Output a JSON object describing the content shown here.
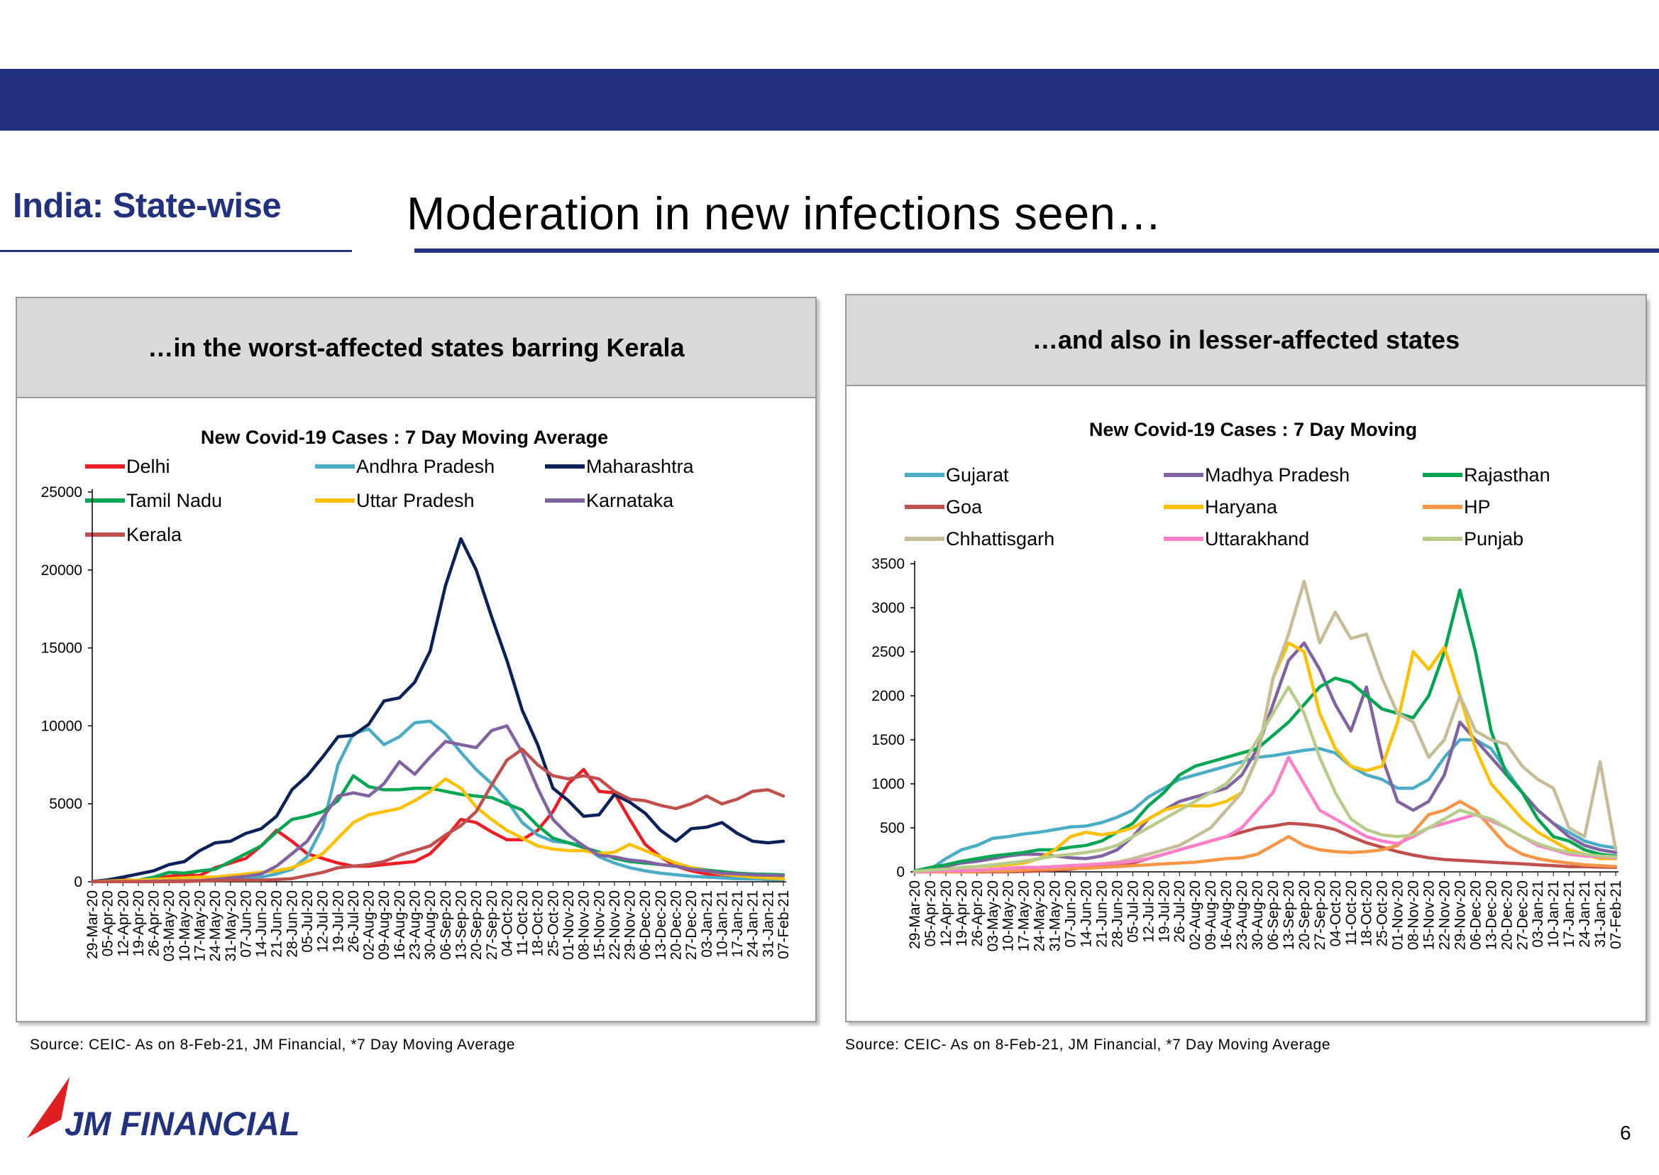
{
  "header": {
    "section_label": "India: State-wise",
    "title": "Moderation in new infections seen…"
  },
  "left_panel": {
    "heading": "…in the worst-affected states barring Kerala",
    "source": "Source: CEIC- As on 8-Feb-21,  JM Financial, *7 Day Moving Average"
  },
  "right_panel": {
    "heading": "…and also in lesser-affected states",
    "source": "Source: CEIC- As on 8-Feb-21,  JM Financial, *7 Day Moving Average"
  },
  "footer": {
    "logo": "JM FINANCIAL",
    "page_number": "6",
    "brand_color": "#22327e",
    "logo_accent": "#e02020"
  },
  "chart_data": [
    {
      "type": "line",
      "title": "New Covid-19 Cases : 7 Day Moving Average",
      "ylim": [
        0,
        25000
      ],
      "yticks": [
        0,
        5000,
        10000,
        15000,
        20000,
        25000
      ],
      "x": [
        "29-Mar-20",
        "05-Apr-20",
        "12-Apr-20",
        "19-Apr-20",
        "26-Apr-20",
        "03-May-20",
        "10-May-20",
        "17-May-20",
        "24-May-20",
        "31-May-20",
        "07-Jun-20",
        "14-Jun-20",
        "21-Jun-20",
        "28-Jun-20",
        "05-Jul-20",
        "12-Jul-20",
        "19-Jul-20",
        "26-Jul-20",
        "02-Aug-20",
        "09-Aug-20",
        "16-Aug-20",
        "23-Aug-20",
        "30-Aug-20",
        "06-Sep-20",
        "13-Sep-20",
        "20-Sep-20",
        "27-Sep-20",
        "04-Oct-20",
        "11-Oct-20",
        "18-Oct-20",
        "25-Oct-20",
        "01-Nov-20",
        "08-Nov-20",
        "15-Nov-20",
        "22-Nov-20",
        "29-Nov-20",
        "06-Dec-20",
        "13-Dec-20",
        "20-Dec-20",
        "27-Dec-20",
        "03-Jan-21",
        "10-Jan-21",
        "17-Jan-21",
        "24-Jan-21",
        "31-Jan-21",
        "07-Feb-21"
      ],
      "legend_placement": "top",
      "series": [
        {
          "name": "Delhi",
          "color": "#ee1c25",
          "values": [
            20,
            80,
            120,
            90,
            200,
            350,
            450,
            400,
            900,
            1200,
            1500,
            2300,
            3300,
            2600,
            1800,
            1500,
            1200,
            1000,
            1000,
            1100,
            1200,
            1300,
            1800,
            2800,
            4000,
            3800,
            3200,
            2700,
            2700,
            3300,
            4500,
            6300,
            7200,
            5800,
            5700,
            4000,
            2400,
            1600,
            1000,
            700,
            500,
            400,
            300,
            200,
            150,
            150
          ]
        },
        {
          "name": "Andhra Pradesh",
          "color": "#4bacc6",
          "values": [
            10,
            30,
            50,
            60,
            60,
            50,
            50,
            60,
            100,
            150,
            200,
            300,
            500,
            800,
            1600,
            3500,
            7500,
            9500,
            9800,
            8800,
            9300,
            10200,
            10300,
            9500,
            8300,
            7200,
            6300,
            5200,
            3800,
            3000,
            2600,
            2500,
            2300,
            1600,
            1200,
            900,
            700,
            550,
            450,
            350,
            300,
            250,
            200,
            180,
            160,
            150
          ]
        },
        {
          "name": "Maharashtra",
          "color": "#0d2159",
          "values": [
            20,
            120,
            300,
            500,
            700,
            1100,
            1300,
            2000,
            2500,
            2600,
            3100,
            3400,
            4200,
            5900,
            6800,
            8000,
            9300,
            9400,
            10100,
            11600,
            11800,
            12800,
            14800,
            19000,
            22000,
            20000,
            17000,
            14200,
            11000,
            8800,
            6000,
            5200,
            4200,
            4300,
            5600,
            5100,
            4400,
            3300,
            2600,
            3400,
            3500,
            3800,
            3100,
            2600,
            2500,
            2600
          ]
        },
        {
          "name": "Tamil Nadu",
          "color": "#00a651",
          "values": [
            10,
            50,
            80,
            100,
            300,
            600,
            550,
            700,
            800,
            1300,
            1800,
            2300,
            3200,
            4000,
            4200,
            4500,
            5200,
            6800,
            6100,
            5900,
            5900,
            6000,
            6000,
            5800,
            5600,
            5500,
            5400,
            5000,
            4600,
            3600,
            2800,
            2500,
            2200,
            1900,
            1500,
            1300,
            1200,
            1100,
            1000,
            900,
            750,
            650,
            550,
            500,
            480,
            450
          ]
        },
        {
          "name": "Uttar Pradesh",
          "color": "#ffc000",
          "values": [
            10,
            40,
            80,
            100,
            150,
            200,
            250,
            300,
            300,
            400,
            500,
            600,
            700,
            900,
            1300,
            1800,
            2800,
            3800,
            4300,
            4500,
            4700,
            5200,
            5800,
            6600,
            6000,
            4800,
            4000,
            3300,
            2800,
            2300,
            2100,
            2000,
            2000,
            1800,
            1900,
            2400,
            2000,
            1600,
            1200,
            900,
            700,
            500,
            400,
            300,
            250,
            200
          ]
        },
        {
          "name": "Karnataka",
          "color": "#8064a2",
          "values": [
            5,
            10,
            15,
            20,
            30,
            50,
            60,
            80,
            150,
            250,
            350,
            500,
            1000,
            1800,
            2600,
            4100,
            5500,
            5700,
            5500,
            6300,
            7700,
            6900,
            8000,
            9000,
            8800,
            8600,
            9700,
            10000,
            8300,
            6000,
            4000,
            3000,
            2300,
            1700,
            1600,
            1400,
            1300,
            1100,
            1000,
            800,
            700,
            550,
            500,
            450,
            420,
            400
          ]
        },
        {
          "name": "Kerala",
          "color": "#c0504d",
          "values": [
            5,
            10,
            10,
            5,
            5,
            10,
            20,
            50,
            80,
            100,
            100,
            100,
            150,
            200,
            400,
            600,
            900,
            1000,
            1100,
            1300,
            1700,
            2000,
            2300,
            3000,
            3600,
            4500,
            6200,
            7800,
            8500,
            7500,
            6800,
            6600,
            6800,
            6600,
            5800,
            5300,
            5200,
            4900,
            4700,
            5000,
            5500,
            5000,
            5300,
            5800,
            5900,
            5500
          ]
        }
      ]
    },
    {
      "type": "line",
      "title": "New Covid-19 Cases : 7 Day Moving",
      "ylim": [
        0,
        3500
      ],
      "yticks": [
        0,
        500,
        1000,
        1500,
        2000,
        2500,
        3000,
        3500
      ],
      "x": [
        "29-Mar-20",
        "05-Apr-20",
        "12-Apr-20",
        "19-Apr-20",
        "26-Apr-20",
        "03-May-20",
        "10-May-20",
        "17-May-20",
        "24-May-20",
        "31-May-20",
        "07-Jun-20",
        "14-Jun-20",
        "21-Jun-20",
        "28-Jun-20",
        "05-Jul-20",
        "12-Jul-20",
        "19-Jul-20",
        "26-Jul-20",
        "02-Aug-20",
        "09-Aug-20",
        "16-Aug-20",
        "23-Aug-20",
        "30-Aug-20",
        "06-Sep-20",
        "13-Sep-20",
        "20-Sep-20",
        "27-Sep-20",
        "04-Oct-20",
        "11-Oct-20",
        "18-Oct-20",
        "25-Oct-20",
        "01-Nov-20",
        "08-Nov-20",
        "15-Nov-20",
        "22-Nov-20",
        "29-Nov-20",
        "06-Dec-20",
        "13-Dec-20",
        "20-Dec-20",
        "27-Dec-20",
        "03-Jan-21",
        "10-Jan-21",
        "17-Jan-21",
        "24-Jan-21",
        "31-Jan-21",
        "07-Feb-21"
      ],
      "legend_placement": "top",
      "series": [
        {
          "name": "Gujarat",
          "color": "#4bacc6",
          "values": [
            10,
            30,
            150,
            250,
            300,
            380,
            400,
            430,
            450,
            480,
            510,
            520,
            560,
            620,
            700,
            850,
            950,
            1050,
            1100,
            1150,
            1200,
            1250,
            1300,
            1320,
            1350,
            1380,
            1400,
            1350,
            1200,
            1100,
            1050,
            950,
            950,
            1050,
            1300,
            1500,
            1500,
            1400,
            1150,
            900,
            700,
            550,
            450,
            350,
            300,
            270
          ]
        },
        {
          "name": "Madhya Pradesh",
          "color": "#8064a2",
          "values": [
            5,
            20,
            60,
            100,
            120,
            150,
            180,
            200,
            200,
            180,
            160,
            150,
            180,
            250,
            400,
            600,
            700,
            800,
            850,
            900,
            950,
            1100,
            1400,
            1900,
            2400,
            2600,
            2300,
            1900,
            1600,
            2100,
            1300,
            800,
            700,
            800,
            1100,
            1700,
            1500,
            1300,
            1100,
            900,
            700,
            550,
            400,
            300,
            250,
            220
          ]
        },
        {
          "name": "Rajasthan",
          "color": "#00a651",
          "values": [
            10,
            50,
            80,
            120,
            150,
            180,
            200,
            220,
            250,
            250,
            280,
            300,
            350,
            450,
            550,
            750,
            900,
            1100,
            1200,
            1250,
            1300,
            1350,
            1400,
            1550,
            1700,
            1900,
            2100,
            2200,
            2150,
            2000,
            1850,
            1800,
            1750,
            2000,
            2500,
            3200,
            2500,
            1600,
            1100,
            900,
            600,
            400,
            350,
            250,
            200,
            180
          ]
        },
        {
          "name": "Goa",
          "color": "#c0504d",
          "values": [
            0,
            0,
            0,
            0,
            0,
            0,
            0,
            5,
            10,
            20,
            30,
            50,
            60,
            80,
            100,
            150,
            200,
            250,
            300,
            350,
            400,
            450,
            500,
            520,
            550,
            540,
            520,
            480,
            400,
            330,
            280,
            230,
            190,
            160,
            140,
            130,
            120,
            110,
            100,
            90,
            80,
            70,
            60,
            60,
            55,
            50
          ]
        },
        {
          "name": "Haryana",
          "color": "#ffc000",
          "values": [
            5,
            10,
            20,
            50,
            60,
            70,
            80,
            100,
            150,
            250,
            400,
            450,
            420,
            450,
            500,
            600,
            700,
            750,
            750,
            750,
            800,
            900,
            1300,
            2200,
            2600,
            2500,
            1800,
            1400,
            1200,
            1150,
            1200,
            1700,
            2500,
            2300,
            2550,
            2000,
            1400,
            1000,
            800,
            600,
            450,
            350,
            250,
            200,
            150,
            150
          ]
        },
        {
          "name": "HP",
          "color": "#f79646",
          "values": [
            0,
            0,
            0,
            0,
            5,
            10,
            10,
            20,
            30,
            30,
            40,
            40,
            50,
            60,
            70,
            80,
            90,
            100,
            110,
            130,
            150,
            160,
            200,
            300,
            400,
            300,
            250,
            230,
            220,
            230,
            250,
            300,
            450,
            650,
            700,
            800,
            700,
            500,
            300,
            200,
            150,
            120,
            100,
            80,
            70,
            60
          ]
        },
        {
          "name": "Chhattisgarh",
          "color": "#c4bd97",
          "values": [
            0,
            5,
            10,
            15,
            20,
            30,
            40,
            50,
            50,
            60,
            70,
            80,
            90,
            110,
            150,
            200,
            250,
            300,
            400,
            500,
            700,
            900,
            1300,
            2200,
            2700,
            3300,
            2600,
            2950,
            2650,
            2700,
            2200,
            1800,
            1700,
            1300,
            1500,
            2000,
            1600,
            1500,
            1450,
            1200,
            1050,
            950,
            500,
            400,
            1250,
            250
          ]
        },
        {
          "name": "Uttarakhand",
          "color": "#ff7fc8",
          "values": [
            0,
            5,
            10,
            10,
            20,
            30,
            40,
            50,
            50,
            60,
            70,
            80,
            90,
            100,
            120,
            150,
            200,
            250,
            300,
            350,
            400,
            500,
            700,
            900,
            1300,
            1000,
            700,
            600,
            500,
            400,
            350,
            320,
            400,
            500,
            550,
            600,
            650,
            580,
            500,
            400,
            300,
            250,
            200,
            180,
            170,
            160
          ]
        },
        {
          "name": "Punjab",
          "color": "#b8cc8a",
          "values": [
            5,
            20,
            30,
            50,
            60,
            80,
            100,
            120,
            150,
            180,
            200,
            220,
            250,
            300,
            400,
            500,
            600,
            700,
            800,
            900,
            1000,
            1200,
            1500,
            1800,
            2100,
            1800,
            1300,
            900,
            600,
            480,
            420,
            400,
            420,
            500,
            600,
            700,
            650,
            600,
            500,
            400,
            320,
            260,
            220,
            200,
            180,
            170
          ]
        }
      ]
    }
  ]
}
